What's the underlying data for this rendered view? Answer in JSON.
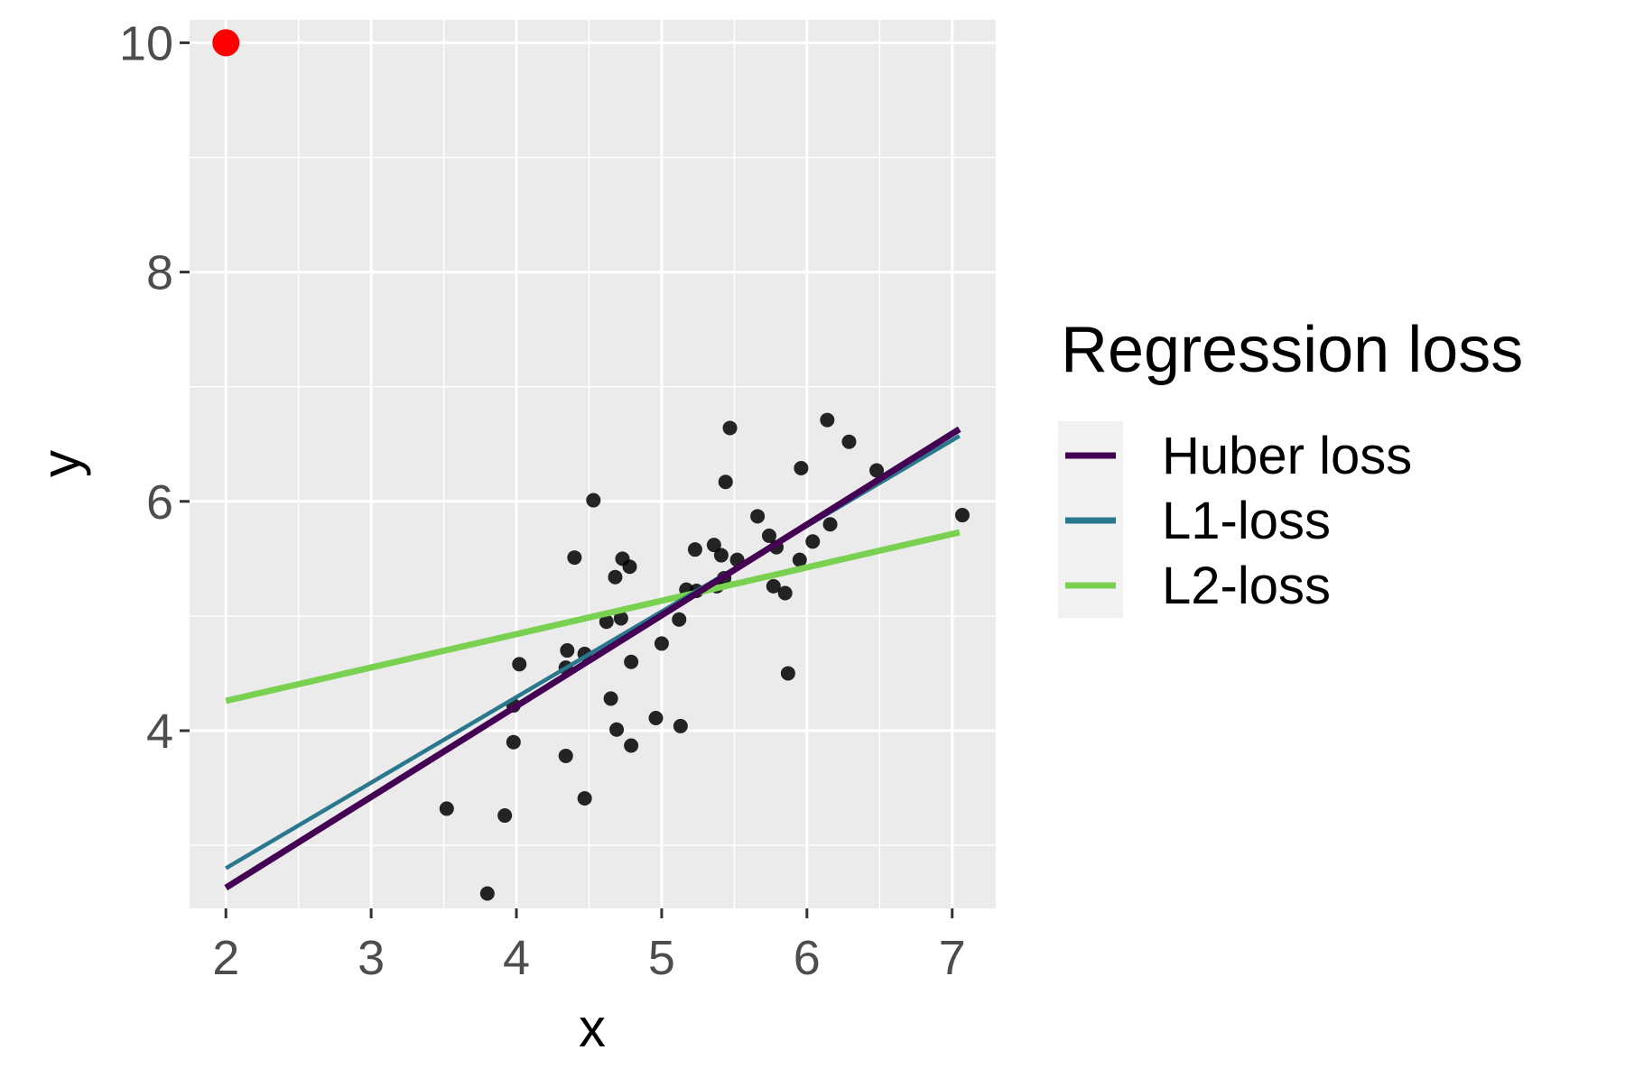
{
  "chart_data": {
    "type": "scatter",
    "title": "",
    "xlabel": "x",
    "ylabel": "y",
    "xlim": [
      1.75,
      7.3
    ],
    "ylim": [
      2.45,
      10.2
    ],
    "x_ticks": [
      2,
      3,
      4,
      5,
      6,
      7
    ],
    "y_ticks": [
      4,
      6,
      8,
      10
    ],
    "grid": true,
    "legend": {
      "title": "Regression loss",
      "position": "right",
      "entries": [
        {
          "name": "Huber loss",
          "color": "#440154"
        },
        {
          "name": "L1-loss",
          "color": "#2a788e"
        },
        {
          "name": "L2-loss",
          "color": "#7ad151"
        }
      ]
    },
    "outlier": {
      "x": 2.0,
      "y": 10.0,
      "color": "#ff0000"
    },
    "points": [
      {
        "x": 3.52,
        "y": 3.32
      },
      {
        "x": 3.8,
        "y": 2.58
      },
      {
        "x": 3.92,
        "y": 3.26
      },
      {
        "x": 3.98,
        "y": 3.9
      },
      {
        "x": 3.98,
        "y": 4.22
      },
      {
        "x": 4.02,
        "y": 4.58
      },
      {
        "x": 4.34,
        "y": 3.78
      },
      {
        "x": 4.34,
        "y": 4.55
      },
      {
        "x": 4.35,
        "y": 4.7
      },
      {
        "x": 4.4,
        "y": 5.51
      },
      {
        "x": 4.47,
        "y": 3.41
      },
      {
        "x": 4.47,
        "y": 4.67
      },
      {
        "x": 4.53,
        "y": 6.01
      },
      {
        "x": 4.62,
        "y": 4.95
      },
      {
        "x": 4.65,
        "y": 4.28
      },
      {
        "x": 4.68,
        "y": 5.34
      },
      {
        "x": 4.69,
        "y": 4.01
      },
      {
        "x": 4.72,
        "y": 4.98
      },
      {
        "x": 4.73,
        "y": 5.5
      },
      {
        "x": 4.78,
        "y": 5.43
      },
      {
        "x": 4.79,
        "y": 3.87
      },
      {
        "x": 4.79,
        "y": 4.6
      },
      {
        "x": 4.96,
        "y": 4.11
      },
      {
        "x": 5.0,
        "y": 4.76
      },
      {
        "x": 5.12,
        "y": 4.97
      },
      {
        "x": 5.13,
        "y": 4.04
      },
      {
        "x": 5.17,
        "y": 5.23
      },
      {
        "x": 5.23,
        "y": 5.58
      },
      {
        "x": 5.24,
        "y": 5.22
      },
      {
        "x": 5.36,
        "y": 5.62
      },
      {
        "x": 5.38,
        "y": 5.26
      },
      {
        "x": 5.41,
        "y": 5.53
      },
      {
        "x": 5.43,
        "y": 5.33
      },
      {
        "x": 5.44,
        "y": 6.17
      },
      {
        "x": 5.47,
        "y": 6.64
      },
      {
        "x": 5.52,
        "y": 5.49
      },
      {
        "x": 5.66,
        "y": 5.87
      },
      {
        "x": 5.74,
        "y": 5.7
      },
      {
        "x": 5.77,
        "y": 5.26
      },
      {
        "x": 5.79,
        "y": 5.6
      },
      {
        "x": 5.85,
        "y": 5.2
      },
      {
        "x": 5.87,
        "y": 4.5
      },
      {
        "x": 5.95,
        "y": 5.49
      },
      {
        "x": 5.96,
        "y": 6.29
      },
      {
        "x": 6.04,
        "y": 5.65
      },
      {
        "x": 6.14,
        "y": 6.71
      },
      {
        "x": 6.16,
        "y": 5.8
      },
      {
        "x": 6.29,
        "y": 6.52
      },
      {
        "x": 6.48,
        "y": 6.27
      },
      {
        "x": 7.07,
        "y": 5.88
      }
    ],
    "series": [
      {
        "name": "Huber loss",
        "color": "#440154",
        "x": [
          2.0,
          7.05
        ],
        "y": [
          2.63,
          6.63
        ]
      },
      {
        "name": "L1-loss",
        "color": "#2a788e",
        "x": [
          2.0,
          7.05
        ],
        "y": [
          2.8,
          6.57
        ]
      },
      {
        "name": "L2-loss",
        "color": "#7ad151",
        "x": [
          2.0,
          7.05
        ],
        "y": [
          4.26,
          5.73
        ]
      }
    ]
  }
}
